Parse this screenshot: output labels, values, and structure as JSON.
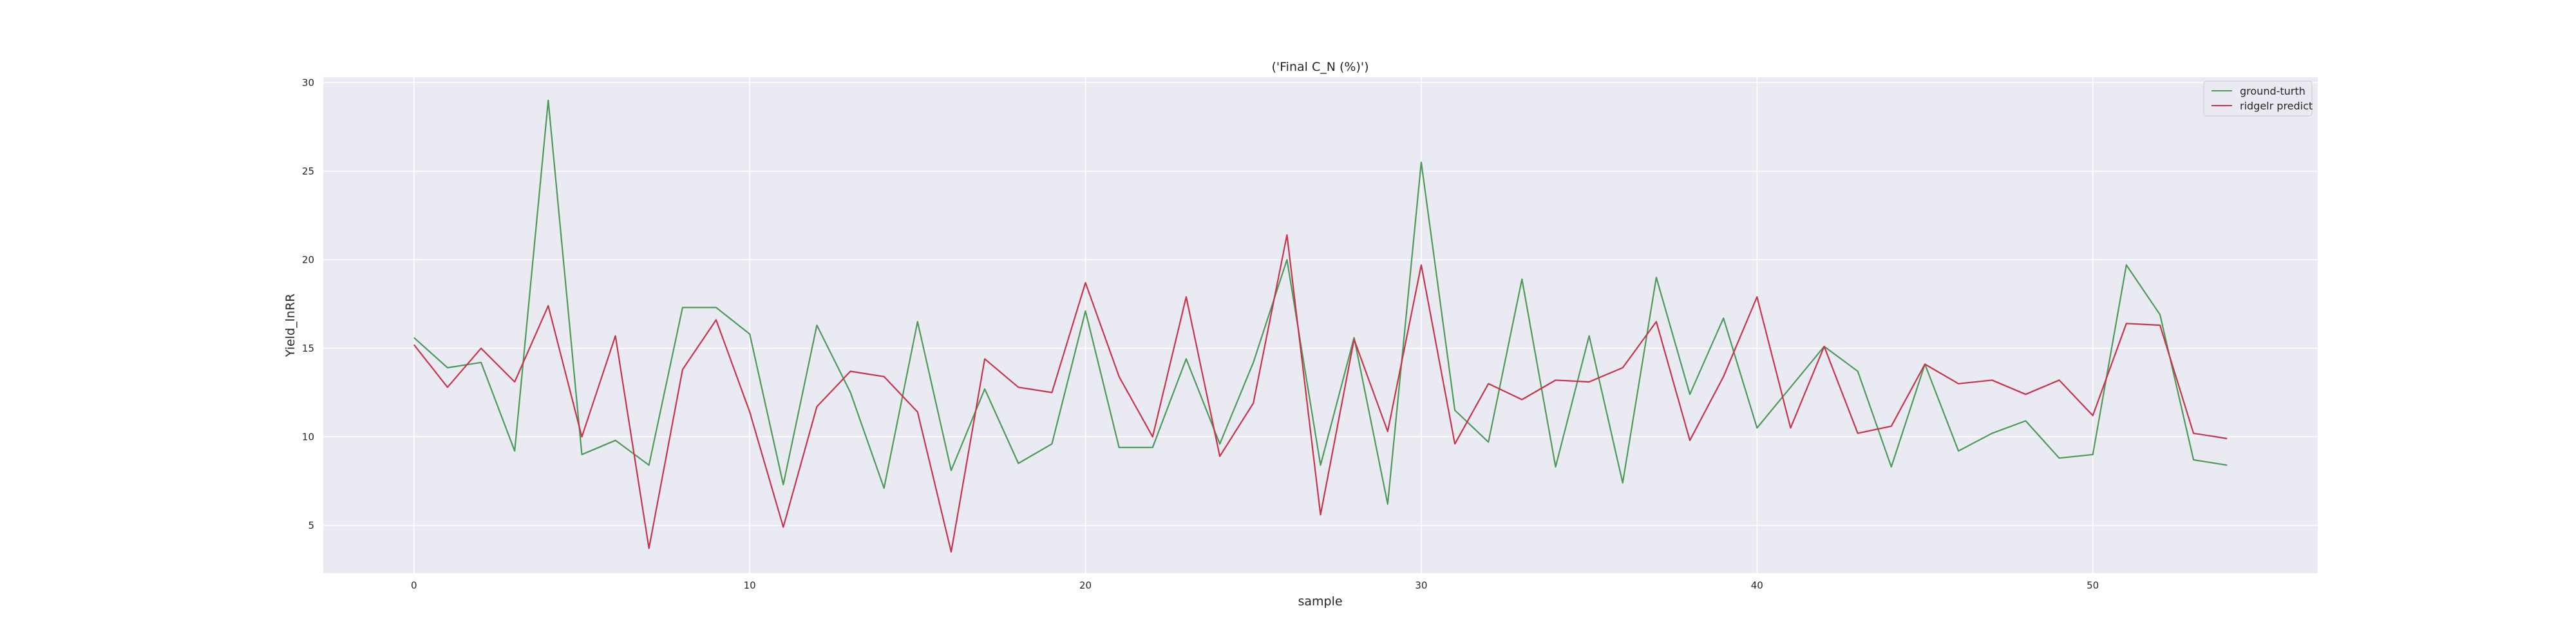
{
  "chart_data": {
    "type": "line",
    "title": "('Final C_N (%)')",
    "xlabel": "sample",
    "ylabel": "Yield_lnRR",
    "xlim": [
      -2.7,
      56.7
    ],
    "ylim": [
      2.3,
      30.3
    ],
    "xticks": [
      "0",
      "10",
      "20",
      "30",
      "40",
      "50"
    ],
    "yticks": [
      "5",
      "10",
      "15",
      "20",
      "25",
      "30"
    ],
    "grid": true,
    "legend_position": "top-right",
    "x": [
      0,
      1,
      2,
      3,
      4,
      5,
      6,
      7,
      8,
      9,
      10,
      11,
      12,
      13,
      14,
      15,
      16,
      17,
      18,
      19,
      20,
      21,
      22,
      23,
      24,
      25,
      26,
      27,
      28,
      29,
      30,
      31,
      32,
      33,
      34,
      35,
      36,
      37,
      38,
      39,
      40,
      41,
      42,
      43,
      44,
      45,
      46,
      47,
      48,
      49,
      50,
      51,
      52,
      53,
      54
    ],
    "series": [
      {
        "name": "ground-turth",
        "color": "#4c9a5a",
        "values": [
          15.6,
          13.9,
          14.2,
          9.2,
          29.0,
          9.0,
          9.8,
          8.4,
          17.3,
          17.3,
          15.8,
          7.3,
          16.3,
          12.5,
          7.1,
          16.5,
          8.1,
          12.7,
          8.5,
          9.6,
          17.1,
          9.4,
          9.4,
          14.4,
          9.6,
          14.2,
          20.0,
          8.4,
          15.6,
          6.2,
          25.5,
          11.5,
          9.7,
          18.9,
          8.3,
          15.7,
          7.4,
          19.0,
          12.4,
          16.7,
          10.5,
          12.8,
          15.1,
          13.7,
          8.3,
          14.1,
          9.2,
          10.2,
          10.9,
          8.8,
          9.0,
          19.7,
          16.9,
          8.7,
          8.4
        ]
      },
      {
        "name": "ridgelr predict",
        "color": "#c8334a",
        "values": [
          15.2,
          12.8,
          15.0,
          13.1,
          17.4,
          10.0,
          15.7,
          3.7,
          13.8,
          16.6,
          11.4,
          4.9,
          11.7,
          13.7,
          13.4,
          11.4,
          3.5,
          14.4,
          12.8,
          12.5,
          18.7,
          13.4,
          10.0,
          17.9,
          8.9,
          11.9,
          21.4,
          5.6,
          15.5,
          10.3,
          19.7,
          9.6,
          13.0,
          12.1,
          13.2,
          13.1,
          13.9,
          16.5,
          9.8,
          13.4,
          17.9,
          10.5,
          15.1,
          10.2,
          10.6,
          14.1,
          13.0,
          13.2,
          12.4,
          13.2,
          11.2,
          16.4,
          16.3,
          10.2,
          9.9
        ]
      }
    ]
  }
}
